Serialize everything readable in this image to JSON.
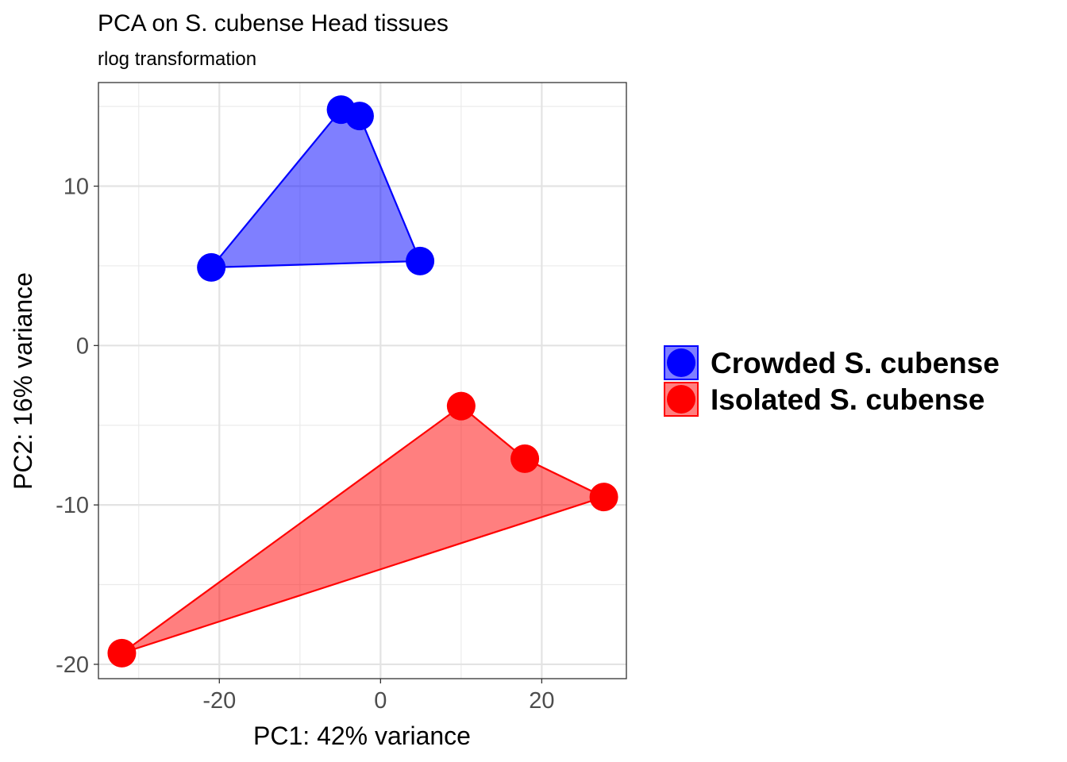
{
  "chart_data": {
    "type": "scatter",
    "title": "PCA on S. cubense Head tissues",
    "subtitle": "rlog transformation",
    "xlabel": "PC1: 42% variance",
    "ylabel": "PC2: 16% variance",
    "xlim": [
      -35.0,
      30.5
    ],
    "ylim": [
      -20.9,
      16.5
    ],
    "xticks": [
      -20,
      0,
      20
    ],
    "xtick_labels": [
      "-20",
      "0",
      "20"
    ],
    "yticks": [
      10,
      0,
      -10,
      -20
    ],
    "ytick_labels": [
      "10",
      "0",
      "-10",
      "-20"
    ],
    "xminor": [
      -30,
      -10,
      10
    ],
    "yminor": [
      15,
      5,
      -5,
      -15
    ],
    "grid": true,
    "legend_position": "right",
    "series": [
      {
        "name": "Crowded S. cubense",
        "color": "#0000FF",
        "x": [
          -4.9,
          -2.6,
          -21.0,
          4.9
        ],
        "y": [
          14.8,
          14.4,
          4.9,
          5.3
        ],
        "hull": [
          [
            -21.0,
            4.9
          ],
          [
            -4.9,
            14.8
          ],
          [
            -2.6,
            14.4
          ],
          [
            4.9,
            5.3
          ]
        ]
      },
      {
        "name": "Isolated S. cubense",
        "color": "#FF0000",
        "x": [
          10.0,
          17.9,
          27.7,
          -32.1
        ],
        "y": [
          -3.8,
          -7.1,
          -9.5,
          -19.3
        ],
        "hull": [
          [
            -32.1,
            -19.3
          ],
          [
            10.0,
            -3.8
          ],
          [
            17.9,
            -7.1
          ],
          [
            27.7,
            -9.5
          ]
        ]
      }
    ]
  }
}
